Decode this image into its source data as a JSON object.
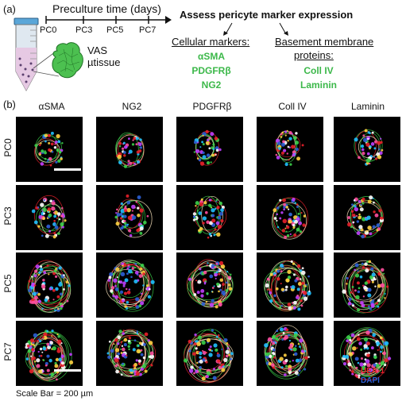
{
  "panel_a": {
    "label": "(a)",
    "timeline_title": "Preculture time (days)",
    "timepoints": [
      "PC0",
      "PC3",
      "PC5",
      "PC7"
    ],
    "assess_title": "Assess pericyte marker expression",
    "tissue_label_1": "VAS",
    "tissue_label_2": "µtissue",
    "cellular": {
      "heading": "Cellular markers:",
      "items": [
        "αSMA",
        "PDGFRβ",
        "NG2"
      ]
    },
    "basement": {
      "heading_1": "Basement membrane",
      "heading_2": "proteins:",
      "items": [
        "Coll IV",
        "Laminin"
      ]
    }
  },
  "panel_b": {
    "label": "(b)",
    "columns": [
      "αSMA",
      "NG2",
      "PDGFRβ",
      "Coll IV",
      "Laminin"
    ],
    "rows": [
      "PC0",
      "PC3",
      "PC5",
      "PC7"
    ],
    "legend_1": "UEA-1",
    "legend_2": "DAPI",
    "legend_colors": {
      "uea": "#e8202a",
      "dapi": "#2c5fd6"
    },
    "scale_bar_text": "Scale Bar = 200 µm"
  }
}
